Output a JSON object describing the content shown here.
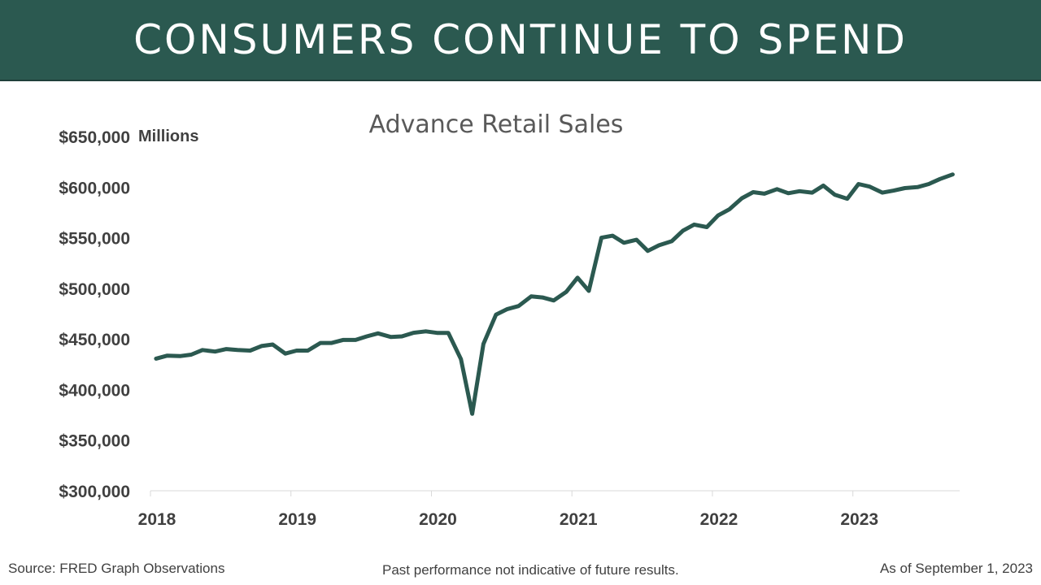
{
  "header": {
    "title": "CONSUMERS CONTINUE TO SPEND",
    "background_color": "#2b5950"
  },
  "chart_data": {
    "type": "line",
    "title": "Advance Retail Sales",
    "ylabel": "Millions",
    "xlabel": "",
    "ylim": [
      300000,
      650000
    ],
    "y_ticks": [
      300000,
      350000,
      400000,
      450000,
      500000,
      550000,
      600000,
      650000
    ],
    "y_tick_labels": [
      "$300,000",
      "$350,000",
      "$400,000",
      "$450,000",
      "$500,000",
      "$550,000",
      "$600,000",
      "$650,000"
    ],
    "x_ticks": [
      2018,
      2019,
      2020,
      2021,
      2022,
      2023
    ],
    "x_tick_labels": [
      "2018",
      "2019",
      "2020",
      "2021",
      "2022",
      "2023"
    ],
    "grid": false,
    "line_color": "#2b5950",
    "series": [
      {
        "x": [
          2018.04,
          2018.12,
          2018.21,
          2018.29,
          2018.37,
          2018.46,
          2018.54,
          2018.62,
          2018.71,
          2018.79,
          2018.87,
          2018.96,
          2019.04,
          2019.12,
          2019.21,
          2019.29,
          2019.37,
          2019.46,
          2019.54,
          2019.62,
          2019.71,
          2019.79,
          2019.87,
          2019.96,
          2020.04,
          2020.12,
          2020.21,
          2020.29,
          2020.37,
          2020.46,
          2020.54,
          2020.62,
          2020.71,
          2020.79,
          2020.87,
          2020.96,
          2021.04,
          2021.12,
          2021.21,
          2021.29,
          2021.37,
          2021.46,
          2021.54,
          2021.62,
          2021.71,
          2021.79,
          2021.87,
          2021.96,
          2022.04,
          2022.12,
          2022.21,
          2022.29,
          2022.37,
          2022.46,
          2022.54,
          2022.62,
          2022.71,
          2022.79,
          2022.87,
          2022.96,
          2023.04,
          2023.12,
          2023.21,
          2023.29,
          2023.37,
          2023.46,
          2023.54,
          2023.62,
          2023.71
        ],
        "values": [
          430500,
          433500,
          433000,
          434500,
          439000,
          437500,
          440000,
          439000,
          438500,
          443000,
          444500,
          435500,
          438500,
          438500,
          446000,
          446000,
          449000,
          449000,
          452500,
          455500,
          452000,
          452500,
          456000,
          457500,
          456000,
          456000,
          430000,
          376000,
          445000,
          474000,
          479500,
          482500,
          492000,
          491000,
          488000,
          496500,
          510500,
          497500,
          550000,
          552000,
          545000,
          548000,
          537000,
          542500,
          546500,
          557000,
          563000,
          560500,
          572000,
          578000,
          589000,
          595000,
          593500,
          598000,
          594000,
          596000,
          594500,
          601500,
          592500,
          588500,
          603000,
          600500,
          594500,
          596500,
          599000,
          600000,
          603000,
          608000,
          612500
        ]
      }
    ]
  },
  "footer": {
    "source": "Source: FRED Graph Observations",
    "disclaimer": "Past performance  not indicative of future results.",
    "as_of": "As of September 1, 2023"
  }
}
